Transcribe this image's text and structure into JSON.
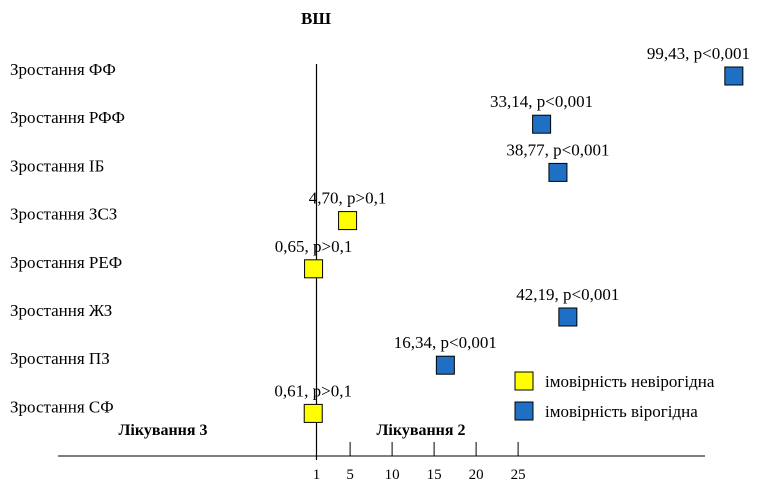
{
  "chart_data": {
    "type": "scatter",
    "title": "ВШ",
    "categories": [
      "Зростання ФФ",
      "Зростання РФФ",
      "Зростання ІБ",
      "Зростання ЗСЗ",
      "Зростання РЕФ",
      "Зростання ЖЗ",
      "Зростання ПЗ",
      "Зростання СФ"
    ],
    "points": [
      {
        "category": "Зростання ФФ",
        "value": 99.43,
        "label": "99,43, p<0,001",
        "group": "reliable"
      },
      {
        "category": "Зростання РФФ",
        "value": 33.14,
        "label": "33,14, p<0,001",
        "group": "reliable"
      },
      {
        "category": "Зростання ІБ",
        "value": 38.77,
        "label": "38,77, p<0,001",
        "group": "reliable"
      },
      {
        "category": "Зростання ЗСЗ",
        "value": 4.7,
        "label": "4,70, p>0,1",
        "group": "unreliable"
      },
      {
        "category": "Зростання РЕФ",
        "value": 0.65,
        "label": "0,65, p>0,1",
        "group": "unreliable"
      },
      {
        "category": "Зростання ЖЗ",
        "value": 42.19,
        "label": "42,19, p<0,001",
        "group": "reliable"
      },
      {
        "category": "Зростання ПЗ",
        "value": 16.34,
        "label": "16,34, p<0,001",
        "group": "reliable"
      },
      {
        "category": "Зростання СФ",
        "value": 0.61,
        "label": "0,61, p>0,1",
        "group": "unreliable"
      }
    ],
    "x_ticks": [
      {
        "value": 1,
        "label": "1"
      },
      {
        "value": 5,
        "label": "5"
      },
      {
        "value": 10,
        "label": "10"
      },
      {
        "value": 15,
        "label": "15"
      },
      {
        "value": 20,
        "label": "20"
      },
      {
        "value": 25,
        "label": "25"
      }
    ],
    "reference_value": 1,
    "left_side_label": "Лікування 3",
    "right_side_label": "Лікування 2",
    "legend": [
      {
        "group": "unreliable",
        "label": "імовірність невірогідна",
        "color": "#ffff00"
      },
      {
        "group": "reliable",
        "label": "імовірність вірогідна",
        "color": "#1f6fc4"
      }
    ],
    "legend_position": "bottom-right",
    "grid": false
  }
}
